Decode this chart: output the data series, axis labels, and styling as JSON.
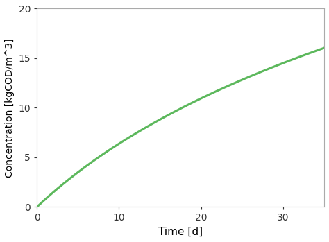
{
  "title": "",
  "xlabel": "Time [d]",
  "ylabel": "Concentration [kgCOD/m^3]",
  "xlim": [
    0,
    35
  ],
  "ylim": [
    0,
    20
  ],
  "xticks": [
    0,
    10,
    20,
    30
  ],
  "yticks": [
    0,
    5,
    10,
    15,
    20
  ],
  "line_color": "#5cb85c",
  "line_width": 2.2,
  "background_color": "#ffffff",
  "curve_a": 4.85,
  "curve_b": 0.68,
  "xlabel_fontsize": 11,
  "ylabel_fontsize": 10,
  "tick_fontsize": 10
}
